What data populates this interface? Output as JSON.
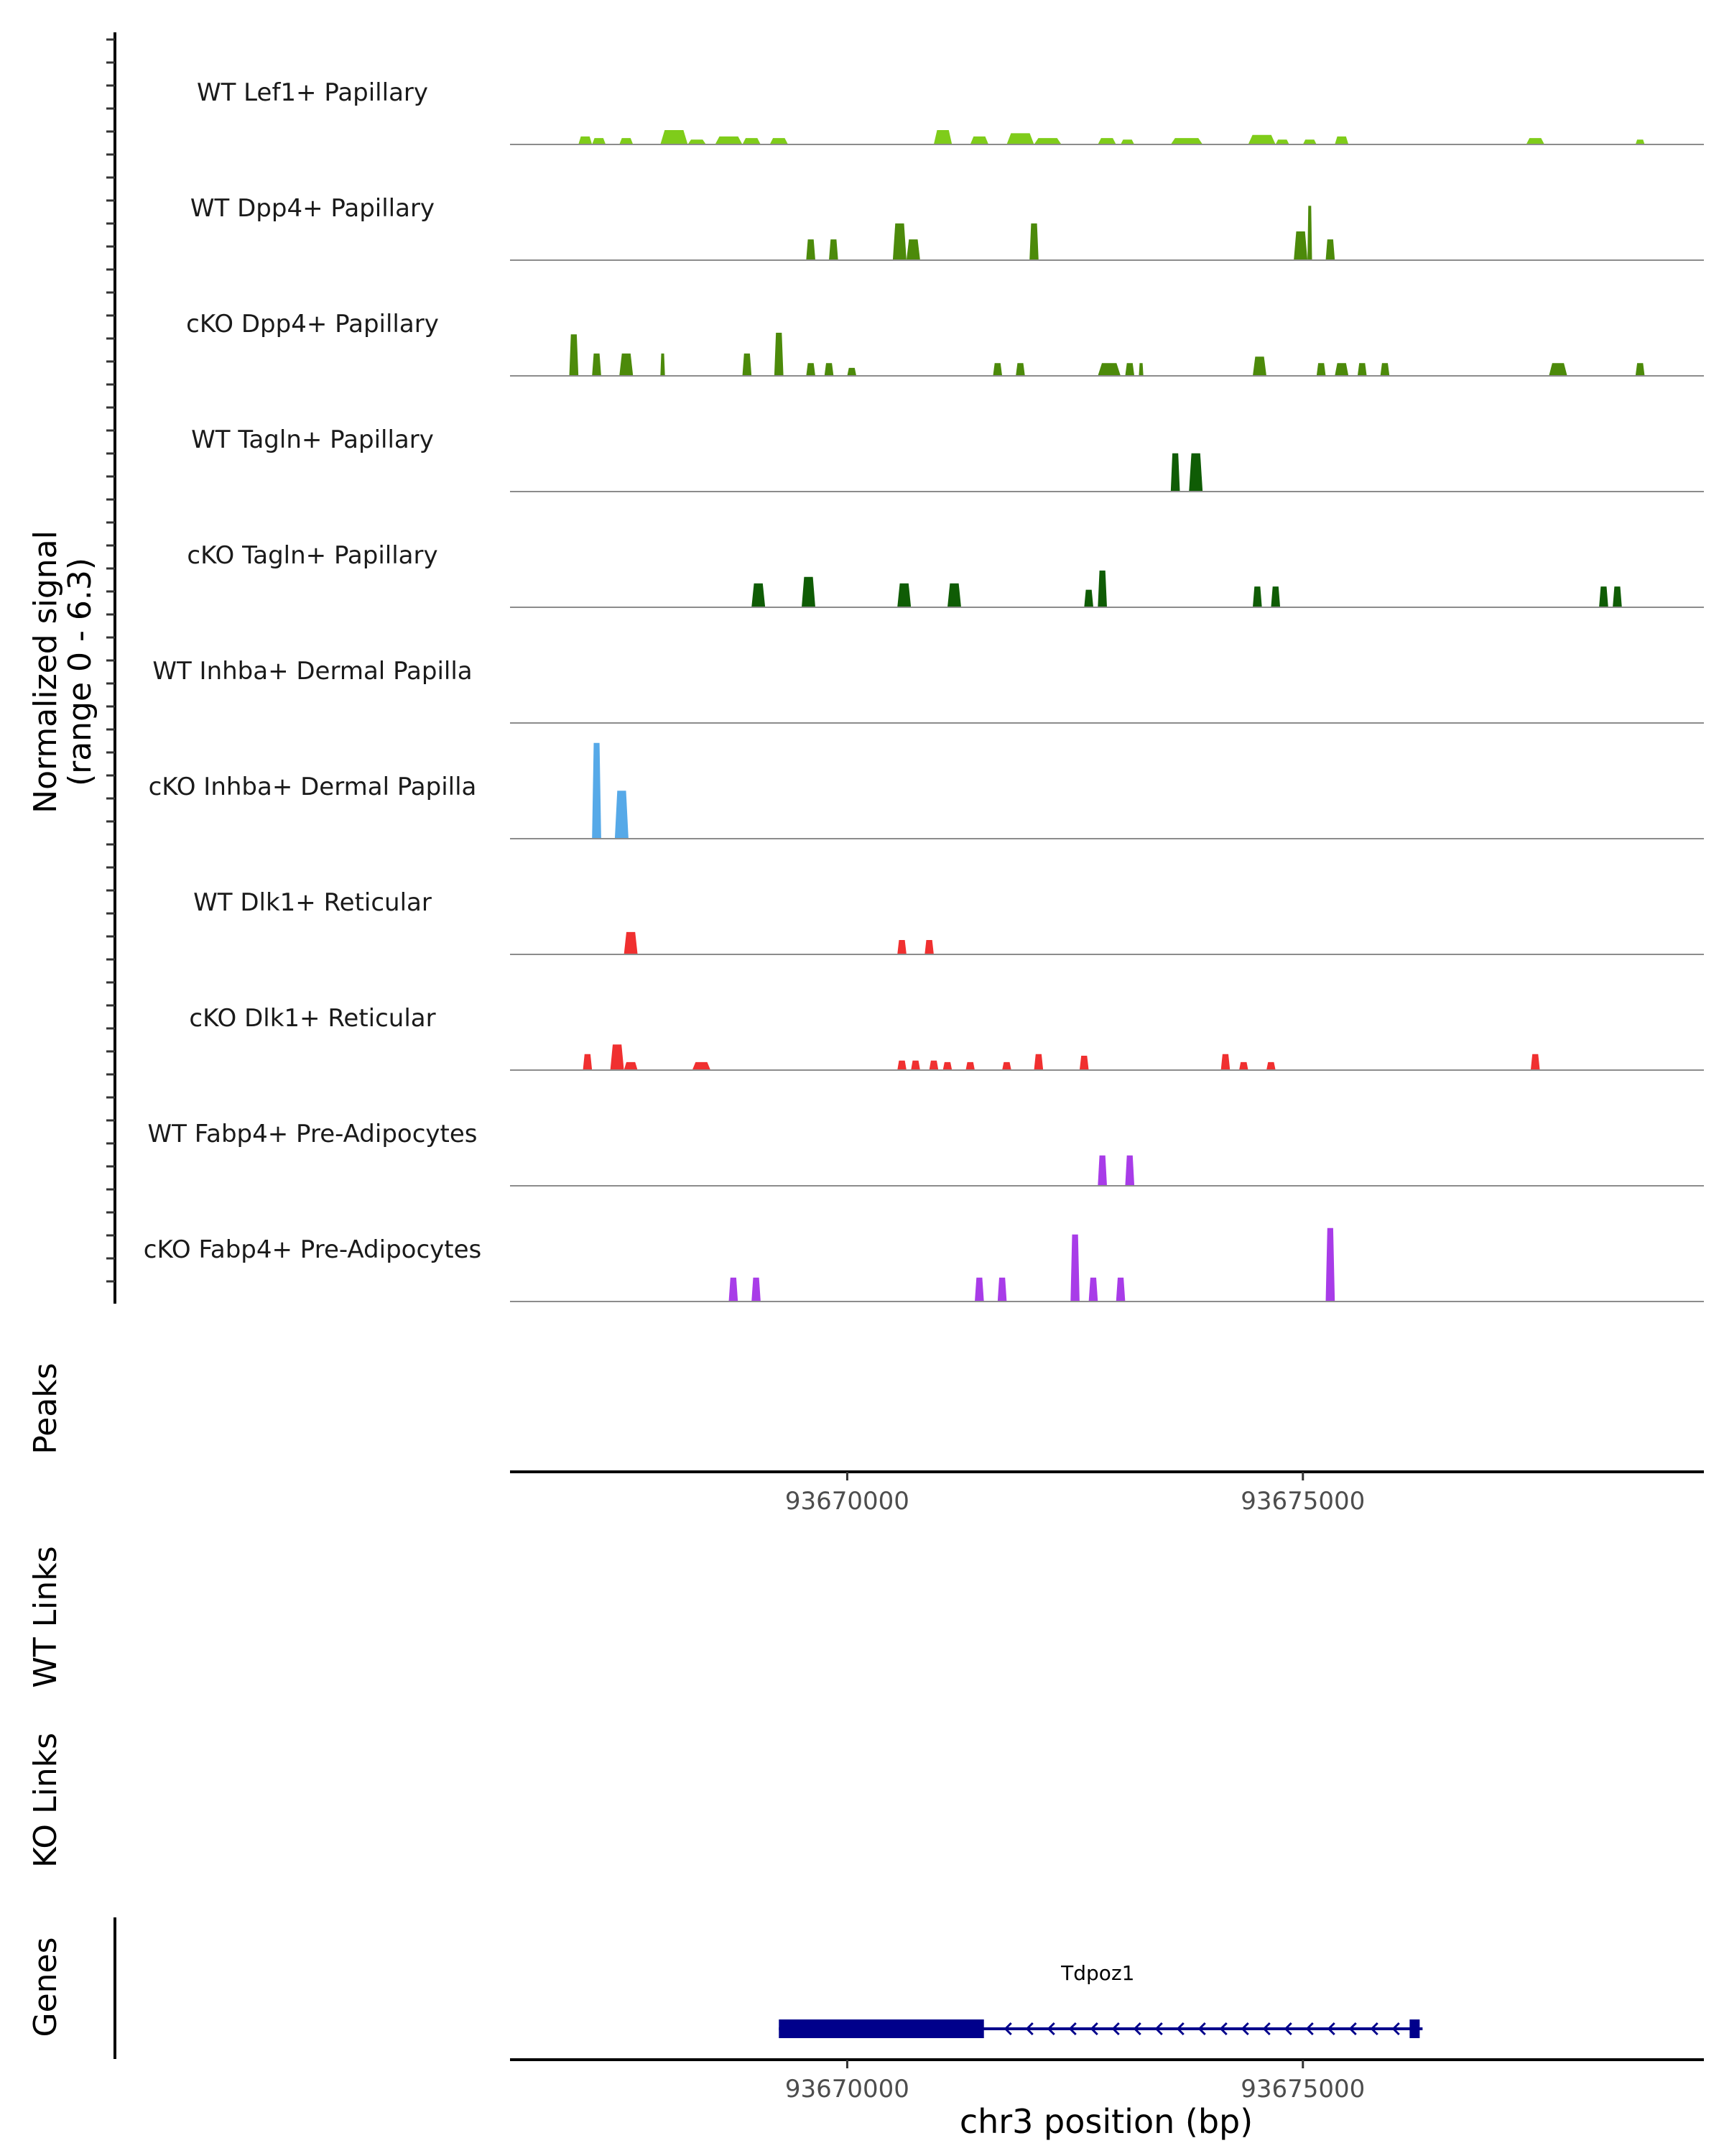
{
  "chart_data": {
    "type": "area",
    "title": "",
    "region": {
      "chromosome": "chr3",
      "start": 93666300,
      "end": 93679400
    },
    "ylabel_main": "Normalized signal",
    "ylabel_range": "(range 0 - 6.3)",
    "ylim": [
      0,
      6.3
    ],
    "xlabel": "chr3 position (bp)",
    "xticks": [
      93670000,
      93675000
    ],
    "xtick_labels": [
      "93670000",
      "93675000"
    ],
    "panel_labels": {
      "peaks": "Peaks",
      "wt_links": "WT Links",
      "ko_links": "KO Links",
      "genes": "Genes"
    },
    "tracks": [
      {
        "name": "WT Lef1+ Papillary",
        "color": "#7FCC1A",
        "peaks": [
          [
            93667050,
            93667200,
            0.5
          ],
          [
            93667200,
            93667350,
            0.4
          ],
          [
            93667500,
            93667650,
            0.4
          ],
          [
            93667950,
            93668250,
            0.9
          ],
          [
            93668250,
            93668450,
            0.3
          ],
          [
            93668550,
            93668850,
            0.5
          ],
          [
            93668850,
            93669050,
            0.4
          ],
          [
            93669150,
            93669350,
            0.4
          ],
          [
            93670950,
            93671150,
            0.9
          ],
          [
            93671350,
            93671550,
            0.5
          ],
          [
            93671750,
            93672050,
            0.7
          ],
          [
            93672050,
            93672350,
            0.4
          ],
          [
            93672750,
            93672950,
            0.4
          ],
          [
            93673000,
            93673150,
            0.3
          ],
          [
            93673550,
            93673900,
            0.4
          ],
          [
            93674400,
            93674700,
            0.6
          ],
          [
            93674700,
            93674850,
            0.3
          ],
          [
            93675000,
            93675150,
            0.3
          ],
          [
            93675350,
            93675500,
            0.5
          ],
          [
            93677450,
            93677650,
            0.4
          ],
          [
            93678650,
            93678750,
            0.3
          ]
        ]
      },
      {
        "name": "WT Dpp4+ Papillary",
        "color": "#4C8A0A",
        "peaks": [
          [
            93669550,
            93669650,
            1.3
          ],
          [
            93669800,
            93669900,
            1.3
          ],
          [
            93670500,
            93670650,
            2.3
          ],
          [
            93670650,
            93670800,
            1.3
          ],
          [
            93672000,
            93672100,
            2.3
          ],
          [
            93674900,
            93675050,
            1.8
          ],
          [
            93675050,
            93675100,
            3.4
          ],
          [
            93675250,
            93675350,
            1.3
          ]
        ]
      },
      {
        "name": "cKO Dpp4+ Papillary",
        "color": "#4C8A0A",
        "peaks": [
          [
            93666950,
            93667050,
            2.6
          ],
          [
            93667200,
            93667300,
            1.4
          ],
          [
            93667500,
            93667650,
            1.4
          ],
          [
            93667950,
            93668000,
            1.4
          ],
          [
            93668850,
            93668950,
            1.4
          ],
          [
            93669200,
            93669300,
            2.7
          ],
          [
            93669550,
            93669650,
            0.8
          ],
          [
            93669750,
            93669850,
            0.8
          ],
          [
            93670000,
            93670100,
            0.5
          ],
          [
            93671600,
            93671700,
            0.8
          ],
          [
            93671850,
            93671950,
            0.8
          ],
          [
            93672750,
            93673000,
            0.8
          ],
          [
            93673050,
            93673150,
            0.8
          ],
          [
            93673200,
            93673250,
            0.8
          ],
          [
            93674450,
            93674600,
            1.2
          ],
          [
            93675150,
            93675250,
            0.8
          ],
          [
            93675350,
            93675500,
            0.8
          ],
          [
            93675600,
            93675700,
            0.8
          ],
          [
            93675850,
            93675950,
            0.8
          ],
          [
            93677700,
            93677900,
            0.8
          ],
          [
            93678650,
            93678750,
            0.8
          ]
        ]
      },
      {
        "name": "WT Tagln+ Papillary",
        "color": "#0F5C05",
        "peaks": [
          [
            93673550,
            93673650,
            2.4
          ],
          [
            93673750,
            93673900,
            2.4
          ]
        ]
      },
      {
        "name": "cKO Tagln+ Papillary",
        "color": "#0F5C05",
        "peaks": [
          [
            93668950,
            93669100,
            1.5
          ],
          [
            93669500,
            93669650,
            1.9
          ],
          [
            93670550,
            93670700,
            1.5
          ],
          [
            93671100,
            93671250,
            1.5
          ],
          [
            93672600,
            93672700,
            1.1
          ],
          [
            93672750,
            93672850,
            2.3
          ],
          [
            93674450,
            93674550,
            1.3
          ],
          [
            93674650,
            93674750,
            1.3
          ],
          [
            93678250,
            93678350,
            1.3
          ],
          [
            93678400,
            93678500,
            1.3
          ]
        ]
      },
      {
        "name": "WT Inhba+ Dermal Papilla",
        "color": "#56A9E8",
        "peaks": []
      },
      {
        "name": "cKO Inhba+ Dermal Papilla",
        "color": "#56A9E8",
        "peaks": [
          [
            93667200,
            93667300,
            6.0
          ],
          [
            93667450,
            93667600,
            3.0
          ]
        ]
      },
      {
        "name": "WT Dlk1+ Reticular",
        "color": "#F03030",
        "peaks": [
          [
            93667550,
            93667700,
            1.4
          ],
          [
            93670550,
            93670650,
            0.9
          ],
          [
            93670850,
            93670950,
            0.9
          ]
        ]
      },
      {
        "name": "cKO Dlk1+ Reticular",
        "color": "#F03030",
        "peaks": [
          [
            93667100,
            93667200,
            1.0
          ],
          [
            93667400,
            93667550,
            1.6
          ],
          [
            93667550,
            93667700,
            0.5
          ],
          [
            93668300,
            93668500,
            0.5
          ],
          [
            93670550,
            93670650,
            0.6
          ],
          [
            93670700,
            93670800,
            0.6
          ],
          [
            93670900,
            93671000,
            0.6
          ],
          [
            93671050,
            93671150,
            0.5
          ],
          [
            93671300,
            93671400,
            0.5
          ],
          [
            93671700,
            93671800,
            0.5
          ],
          [
            93672050,
            93672150,
            1.0
          ],
          [
            93672550,
            93672650,
            0.9
          ],
          [
            93674100,
            93674200,
            1.0
          ],
          [
            93674300,
            93674400,
            0.5
          ],
          [
            93674600,
            93674700,
            0.5
          ],
          [
            93677500,
            93677600,
            1.0
          ]
        ]
      },
      {
        "name": "WT Fabp4+ Pre-Adipocytes",
        "color": "#A83CE8",
        "peaks": [
          [
            93672750,
            93672850,
            1.9
          ],
          [
            93673050,
            93673150,
            1.9
          ]
        ]
      },
      {
        "name": "cKO Fabp4+ Pre-Adipocytes",
        "color": "#A83CE8",
        "peaks": [
          [
            93668700,
            93668800,
            1.5
          ],
          [
            93668950,
            93669050,
            1.5
          ],
          [
            93671400,
            93671500,
            1.5
          ],
          [
            93671650,
            93671750,
            1.5
          ],
          [
            93672450,
            93672550,
            4.2
          ],
          [
            93672650,
            93672750,
            1.5
          ],
          [
            93672950,
            93673050,
            1.5
          ],
          [
            93675250,
            93675350,
            4.6
          ]
        ]
      }
    ],
    "gene": {
      "name": "Tdpoz1",
      "start": 93669250,
      "end": 93676250,
      "thick_start": 93669250,
      "thick_end": 93671500,
      "strand": "-",
      "color": "#00008B"
    }
  }
}
